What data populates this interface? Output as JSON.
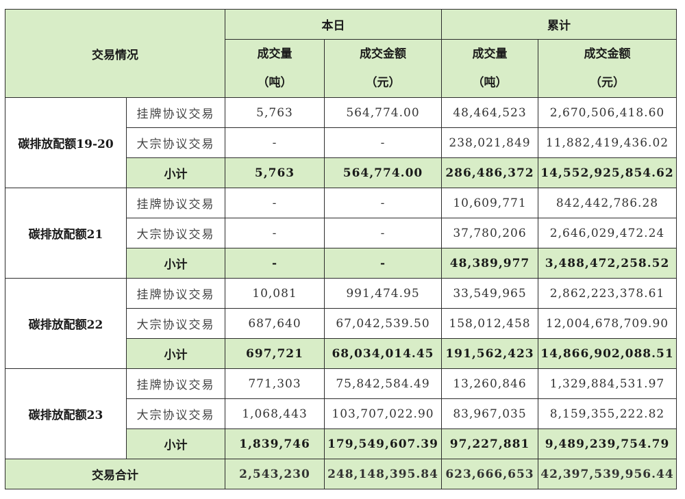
{
  "header": {
    "corner": "交易情况",
    "today": "本日",
    "cumulative": "累计",
    "volume": "成交量",
    "volume_unit": "（吨）",
    "amount": "成交金额",
    "amount_unit": "（元）"
  },
  "groups": [
    {
      "name": "碳排放配额19-20",
      "rows": [
        {
          "type": "挂牌协议交易",
          "d_vol": "5,763",
          "d_amt": "564,774.00",
          "c_vol": "48,464,523",
          "c_amt": "2,670,506,418.60"
        },
        {
          "type": "大宗协议交易",
          "d_vol": "-",
          "d_amt": "-",
          "c_vol": "238,021,849",
          "c_amt": "11,882,419,436.02"
        }
      ],
      "subtotal": {
        "label": "小计",
        "d_vol": "5,763",
        "d_amt": "564,774.00",
        "c_vol": "286,486,372",
        "c_amt": "14,552,925,854.62"
      }
    },
    {
      "name": "碳排放配额21",
      "rows": [
        {
          "type": "挂牌协议交易",
          "d_vol": "-",
          "d_amt": "-",
          "c_vol": "10,609,771",
          "c_amt": "842,442,786.28"
        },
        {
          "type": "大宗协议交易",
          "d_vol": "-",
          "d_amt": "-",
          "c_vol": "37,780,206",
          "c_amt": "2,646,029,472.24"
        }
      ],
      "subtotal": {
        "label": "小计",
        "d_vol": "-",
        "d_amt": "-",
        "c_vol": "48,389,977",
        "c_amt": "3,488,472,258.52"
      }
    },
    {
      "name": "碳排放配额22",
      "rows": [
        {
          "type": "挂牌协议交易",
          "d_vol": "10,081",
          "d_amt": "991,474.95",
          "c_vol": "33,549,965",
          "c_amt": "2,862,223,378.61"
        },
        {
          "type": "大宗协议交易",
          "d_vol": "687,640",
          "d_amt": "67,042,539.50",
          "c_vol": "158,012,458",
          "c_amt": "12,004,678,709.90"
        }
      ],
      "subtotal": {
        "label": "小计",
        "d_vol": "697,721",
        "d_amt": "68,034,014.45",
        "c_vol": "191,562,423",
        "c_amt": "14,866,902,088.51"
      }
    },
    {
      "name": "碳排放配额23",
      "rows": [
        {
          "type": "挂牌协议交易",
          "d_vol": "771,303",
          "d_amt": "75,842,584.49",
          "c_vol": "13,260,846",
          "c_amt": "1,329,884,531.97"
        },
        {
          "type": "大宗协议交易",
          "d_vol": "1,068,443",
          "d_amt": "103,707,022.90",
          "c_vol": "83,967,035",
          "c_amt": "8,159,355,222.82"
        }
      ],
      "subtotal": {
        "label": "小计",
        "d_vol": "1,839,746",
        "d_amt": "179,549,607.39",
        "c_vol": "97,227,881",
        "c_amt": "9,489,239,754.79"
      }
    }
  ],
  "total": {
    "label": "交易合计",
    "d_vol": "2,543,230",
    "d_amt": "248,148,395.84",
    "c_vol": "623,666,653",
    "c_amt": "42,397,539,956.44"
  }
}
